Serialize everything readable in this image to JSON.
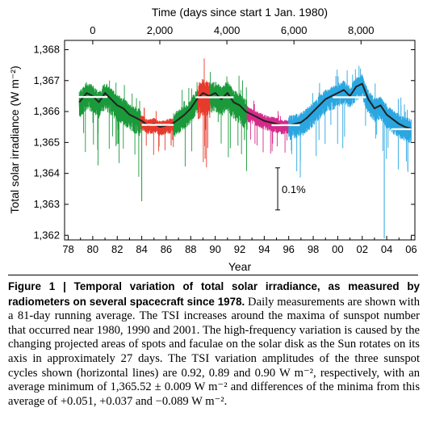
{
  "chart_data": {
    "type": "line",
    "top_axis_label": "Time (days since start 1 Jan. 1980)",
    "top_ticks": [
      {
        "value": 0,
        "label": "0"
      },
      {
        "value": 2000,
        "label": "2,000"
      },
      {
        "value": 4000,
        "label": "4,000"
      },
      {
        "value": 6000,
        "label": "6,000"
      },
      {
        "value": 8000,
        "label": "8,000"
      }
    ],
    "xlabel": "Year",
    "x_ticks": [
      {
        "value": 1978,
        "label": "78"
      },
      {
        "value": 1980,
        "label": "80"
      },
      {
        "value": 1982,
        "label": "82"
      },
      {
        "value": 1984,
        "label": "84"
      },
      {
        "value": 1986,
        "label": "86"
      },
      {
        "value": 1988,
        "label": "88"
      },
      {
        "value": 1990,
        "label": "90"
      },
      {
        "value": 1992,
        "label": "92"
      },
      {
        "value": 1994,
        "label": "94"
      },
      {
        "value": 1996,
        "label": "96"
      },
      {
        "value": 1998,
        "label": "98"
      },
      {
        "value": 2000,
        "label": "00"
      },
      {
        "value": 2002,
        "label": "02"
      },
      {
        "value": 2004,
        "label": "04"
      },
      {
        "value": 2006,
        "label": "06"
      }
    ],
    "ylabel": "Total solar irradiance (W m⁻²)",
    "y_ticks": [
      {
        "value": 1362,
        "label": "1,362"
      },
      {
        "value": 1363,
        "label": "1,363"
      },
      {
        "value": 1364,
        "label": "1,364"
      },
      {
        "value": 1365,
        "label": "1,365"
      },
      {
        "value": 1366,
        "label": "1,366"
      },
      {
        "value": 1367,
        "label": "1,367"
      },
      {
        "value": 1368,
        "label": "1,368"
      }
    ],
    "xlim": [
      1977.7,
      2006.3
    ],
    "ylim": [
      1361.85,
      1368.3
    ],
    "annotation": {
      "label": "0.1%",
      "x": 1995.1,
      "y_from": 1362.82,
      "y_to": 1364.18
    },
    "daily_series": [
      {
        "color": "#1a9a3a",
        "start": 1978.9,
        "end": 1983.9,
        "level": 1366.3,
        "spread": 0.45
      },
      {
        "color": "#e63a2c",
        "start": 1983.9,
        "end": 1986.6,
        "level": 1365.7,
        "spread": 0.25
      },
      {
        "color": "#1a9a3a",
        "start": 1986.6,
        "end": 1988.6,
        "level": 1365.9,
        "spread": 0.4
      },
      {
        "color": "#e63a2c",
        "start": 1988.6,
        "end": 1989.6,
        "level": 1366.4,
        "spread": 0.6
      },
      {
        "color": "#1a9a3a",
        "start": 1989.6,
        "end": 1992.6,
        "level": 1366.3,
        "spread": 0.5
      },
      {
        "color": "#d62a8a",
        "start": 1992.6,
        "end": 1996.0,
        "level": 1365.85,
        "spread": 0.25
      },
      {
        "color": "#2aa6e0",
        "start": 1996.0,
        "end": 2006.0,
        "level": 1366.1,
        "spread": 0.4
      }
    ],
    "running_average": {
      "name": "81-day running average",
      "color": "#222222",
      "x": [
        1978.9,
        1979.5,
        1980.0,
        1980.5,
        1981.0,
        1981.5,
        1982.0,
        1982.5,
        1983.0,
        1983.5,
        1984.0,
        1984.5,
        1985.0,
        1985.5,
        1986.0,
        1986.5,
        1987.0,
        1987.5,
        1988.0,
        1988.5,
        1989.0,
        1989.5,
        1990.0,
        1990.5,
        1991.0,
        1991.5,
        1992.0,
        1992.5,
        1993.0,
        1993.5,
        1994.0,
        1994.5,
        1995.0,
        1995.5,
        1996.0,
        1996.5,
        1997.0,
        1997.5,
        1998.0,
        1998.5,
        1999.0,
        1999.5,
        2000.0,
        2000.5,
        2001.0,
        2001.5,
        2002.0,
        2002.5,
        2003.0,
        2003.5,
        2004.0,
        2004.5,
        2005.0,
        2005.5,
        2006.0
      ],
      "y": [
        1366.3,
        1366.6,
        1366.5,
        1366.3,
        1366.6,
        1366.4,
        1366.2,
        1366.1,
        1365.9,
        1365.8,
        1365.7,
        1365.55,
        1365.6,
        1365.5,
        1365.55,
        1365.6,
        1365.75,
        1365.9,
        1366.1,
        1366.4,
        1366.6,
        1366.5,
        1366.6,
        1366.4,
        1366.6,
        1366.3,
        1366.2,
        1366.0,
        1365.9,
        1365.8,
        1365.7,
        1365.65,
        1365.6,
        1365.55,
        1365.55,
        1365.6,
        1365.65,
        1365.8,
        1366.0,
        1366.2,
        1366.4,
        1366.5,
        1366.6,
        1366.7,
        1366.5,
        1366.8,
        1366.9,
        1366.4,
        1366.1,
        1366.2,
        1365.9,
        1365.75,
        1365.6,
        1365.5,
        1365.45
      ]
    },
    "cycle_averages": [
      {
        "x_from": 1978.6,
        "x_to": 1981.2,
        "value": 1366.47
      },
      {
        "x_from": 1984.0,
        "x_to": 1986.6,
        "value": 1365.57
      },
      {
        "x_from": 1988.4,
        "x_to": 1991.5,
        "value": 1366.46
      },
      {
        "x_from": 1994.6,
        "x_to": 1996.9,
        "value": 1365.56
      },
      {
        "x_from": 1999.6,
        "x_to": 2002.3,
        "value": 1366.46
      },
      {
        "x_from": 2004.4,
        "x_to": 2006.0,
        "value": 1365.43
      }
    ]
  },
  "caption": {
    "title": "Figure 1 | Temporal variation of total solar irradiance, as measured by radiometers on several spacecraft since 1978.",
    "body": "Daily measurements are shown with a 81-day running average. The TSI increases around the maxima of sunspot number that occurred near 1980, 1990 and 2001. The high-frequency variation is caused by the changing projected areas of spots and faculae on the solar disk as the Sun rotates on its axis in approximately 27 days. The TSI variation amplitudes of the three sunspot cycles shown (horizontal lines) are 0.92, 0.89 and 0.90 W m⁻², respectively, with an average minimum of 1,365.52 ± 0.009 W m⁻² and differences of the minima from this average of +0.051, +0.037 and −0.089 W m⁻²."
  }
}
